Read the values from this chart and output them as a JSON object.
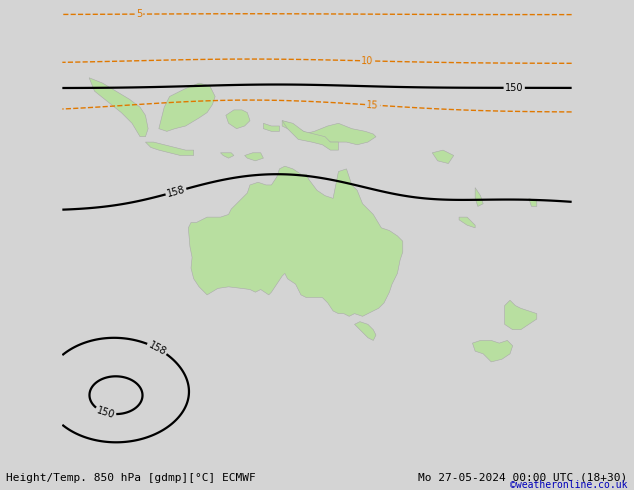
{
  "title_left": "Height/Temp. 850 hPa [gdmp][°C] ECMWF",
  "title_right": "Mo 27-05-2024 00:00 UTC (18+30)",
  "credit": "©weatheronline.co.uk",
  "bg_color": "#d4d4d4",
  "land_color": "#b8dfa0",
  "aus_color": "#b8dfa0",
  "ocean_color": "#d4d4d4",
  "black_color": "#000000",
  "orange_color": "#e07800",
  "cyan_color": "#00c0c0",
  "green_color": "#60cc60",
  "red_color": "#dd0000",
  "font_size_label": 7,
  "font_size_title": 8,
  "font_size_credit": 7,
  "lon_min": 90,
  "lon_max": 185,
  "lat_min": -65,
  "lat_max": 20
}
